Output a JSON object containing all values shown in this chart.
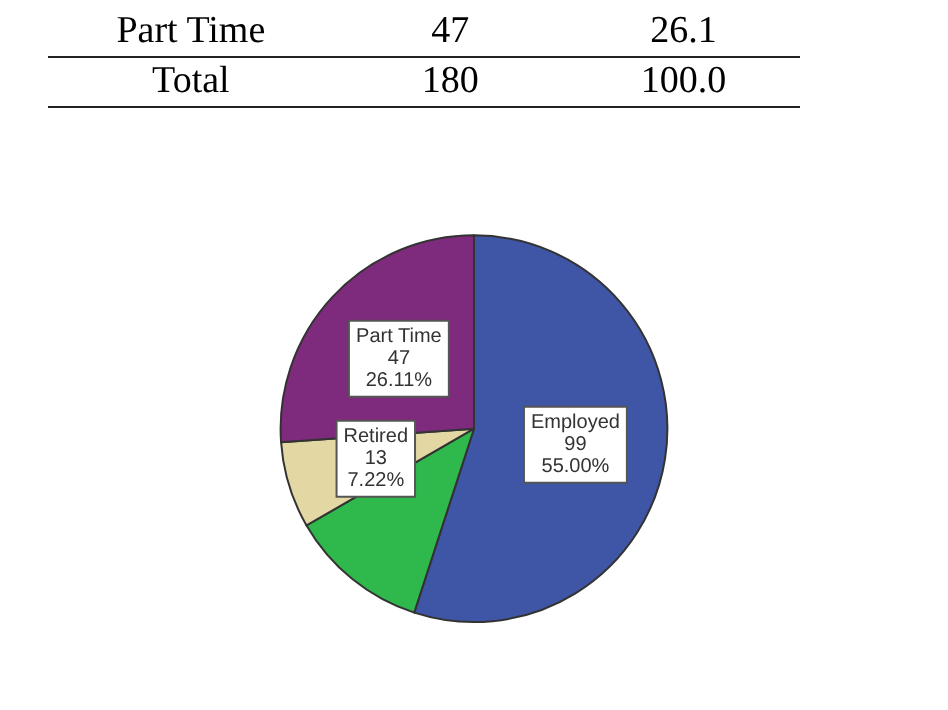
{
  "chart_data": {
    "type": "pie",
    "categories": [
      "Employed",
      null,
      "Retired",
      "Part Time"
    ],
    "values": [
      99,
      21,
      13,
      47
    ],
    "colors": [
      "#3f56a6",
      "#2fb84c",
      "#e3d8a4",
      "#7e2a7d"
    ],
    "value_labels": [
      "99\n55.00%",
      null,
      "13\n7.22%",
      "47\n26.11%"
    ],
    "annotations": [
      "Part Time\t47\t26.1",
      "Total\t180\t100.0"
    ],
    "legend": false
  }
}
